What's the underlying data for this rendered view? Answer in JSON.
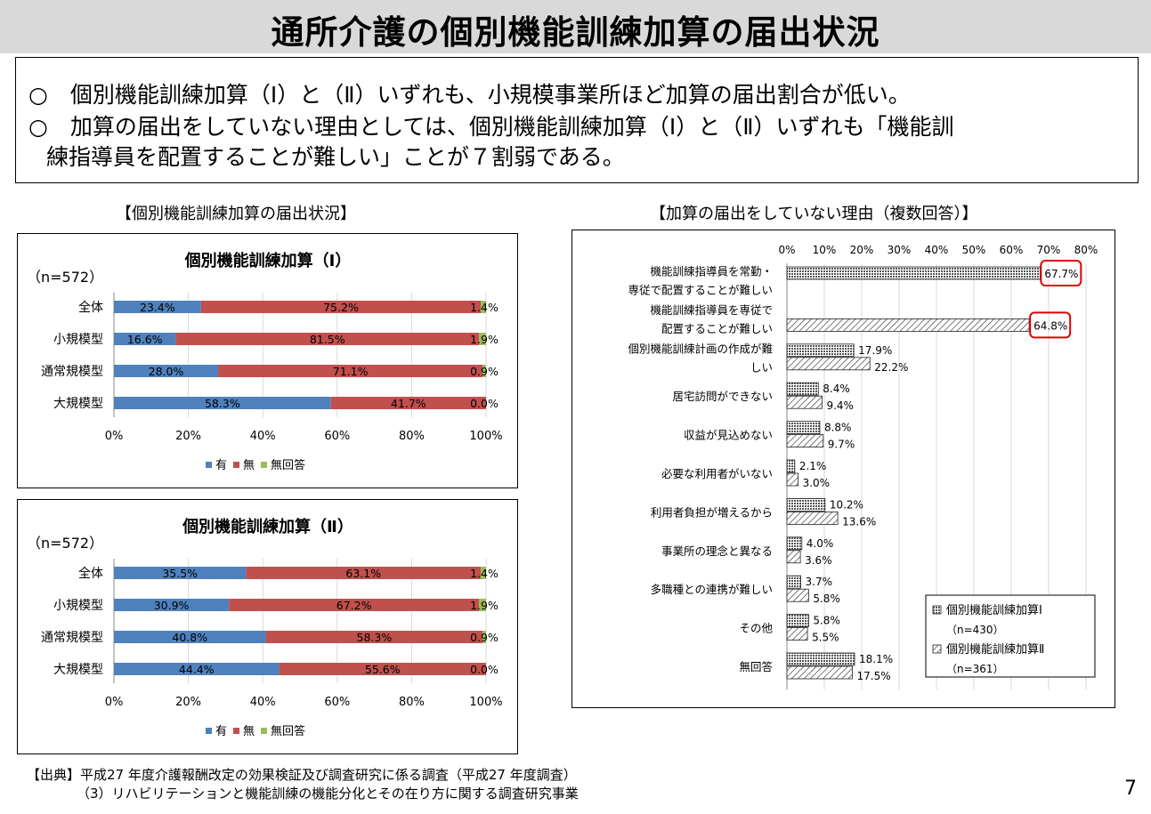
{
  "header": {
    "title": "通所介護の個別機能訓練加算の届出状況"
  },
  "summary": {
    "line1": "○　個別機能訓練加算（Ⅰ）と（Ⅱ）いずれも、小規模事業所ほど加算の届出割合が低い。",
    "line2": "○　加算の届出をしていない理由としては、個別機能訓練加算（Ⅰ）と（Ⅱ）いずれも「機能訓",
    "line3": "練指導員を配置することが難しい」ことが７割弱である。"
  },
  "left_section_title": "【個別機能訓練加算の届出状況】",
  "right_section_title": "【加算の届出をしていない理由（複数回答）】",
  "colors": {
    "yes": "#4f81bd",
    "no": "#c0504d",
    "no_answer": "#9bbb59",
    "highlight": "#e00000"
  },
  "chart_data": [
    {
      "type": "bar",
      "orientation": "horizontal",
      "stacked": true,
      "title": "個別機能訓練加算（Ⅰ）",
      "note": "（n=572）",
      "categories": [
        "全体",
        "小規模型",
        "通常規模型",
        "大規模型"
      ],
      "series": [
        {
          "name": "有",
          "values": [
            23.4,
            16.6,
            28.0,
            58.3
          ],
          "labels": [
            "23.4%",
            "16.6%",
            "28.0%",
            "58.3%"
          ]
        },
        {
          "name": "無",
          "values": [
            75.2,
            81.5,
            71.1,
            41.7
          ],
          "labels": [
            "75.2%",
            "81.5%",
            "71.1%",
            "41.7%"
          ]
        },
        {
          "name": "無回答",
          "values": [
            1.4,
            1.9,
            0.9,
            0.0
          ],
          "labels": [
            "1.4%",
            "1.9%",
            "0.9%",
            "0.0%"
          ]
        }
      ],
      "xticks": [
        "0%",
        "20%",
        "40%",
        "60%",
        "80%",
        "100%"
      ],
      "xlim": [
        0,
        100
      ],
      "legend": "bottom"
    },
    {
      "type": "bar",
      "orientation": "horizontal",
      "stacked": true,
      "title": "個別機能訓練加算（Ⅱ）",
      "note": "（n=572）",
      "categories": [
        "全体",
        "小規模型",
        "通常規模型",
        "大規模型"
      ],
      "series": [
        {
          "name": "有",
          "values": [
            35.5,
            30.9,
            40.8,
            44.4
          ],
          "labels": [
            "35.5%",
            "30.9%",
            "40.8%",
            "44.4%"
          ]
        },
        {
          "name": "無",
          "values": [
            63.1,
            67.2,
            58.3,
            55.6
          ],
          "labels": [
            "63.1%",
            "67.2%",
            "58.3%",
            "55.6%"
          ]
        },
        {
          "name": "無回答",
          "values": [
            1.4,
            1.9,
            0.9,
            0.0
          ],
          "labels": [
            "1.4%",
            "1.9%",
            "0.9%",
            "0.0%"
          ]
        }
      ],
      "xticks": [
        "0%",
        "20%",
        "40%",
        "60%",
        "80%",
        "100%"
      ],
      "xlim": [
        0,
        100
      ],
      "legend": "bottom"
    },
    {
      "type": "bar",
      "orientation": "horizontal",
      "grouped": true,
      "categories": [
        [
          "機能訓練指導員を常勤・",
          "専従で配置することが難しい"
        ],
        [
          "機能訓練指導員を専従で",
          "配置することが難しい"
        ],
        [
          "個別機能訓練計画の作成が難",
          "しい"
        ],
        [
          "居宅訪問ができない"
        ],
        [
          "収益が見込めない"
        ],
        [
          "必要な利用者がいない"
        ],
        [
          "利用者負担が増えるから"
        ],
        [
          "事業所の理念と異なる"
        ],
        [
          "多職種との連携が難しい"
        ],
        [
          "その他"
        ],
        [
          "無回答"
        ]
      ],
      "series": [
        {
          "name": "個別機能訓練加算Ⅰ",
          "n_label": "（n=430）",
          "pattern": "dense",
          "values": [
            67.7,
            null,
            17.9,
            8.4,
            8.8,
            2.1,
            10.2,
            4.0,
            3.7,
            5.8,
            18.1
          ],
          "labels": [
            "67.7%",
            "",
            "17.9%",
            "8.4%",
            "8.8%",
            "2.1%",
            "10.2%",
            "4.0%",
            "3.7%",
            "5.8%",
            "18.1%"
          ]
        },
        {
          "name": "個別機能訓練加算Ⅱ",
          "n_label": "（n=361）",
          "pattern": "diagonal",
          "values": [
            null,
            64.8,
            22.2,
            9.4,
            9.7,
            3.0,
            13.6,
            3.6,
            5.8,
            5.5,
            17.5
          ],
          "labels": [
            "",
            "64.8%",
            "22.2%",
            "9.4%",
            "9.7%",
            "3.0%",
            "13.6%",
            "3.6%",
            "5.8%",
            "5.5%",
            "17.5%"
          ]
        }
      ],
      "highlighted_labels": [
        "67.7%",
        "64.8%"
      ],
      "xticks": [
        "0%",
        "10%",
        "20%",
        "30%",
        "40%",
        "50%",
        "60%",
        "70%",
        "80%"
      ],
      "xlim": [
        0,
        80
      ],
      "xaxis_position": "top",
      "legend": "bottom-right"
    }
  ],
  "source": {
    "line1": "【出典】平成27 年度介護報酬改定の効果検証及び調査研究に係る調査（平成27 年度調査）",
    "line2": "（3）リハビリテーションと機能訓練の機能分化とその在り方に関する調査研究事業"
  },
  "page_number": "7"
}
